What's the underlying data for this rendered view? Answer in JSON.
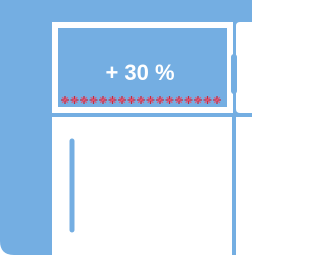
{
  "badge": {
    "label": "+ 30 %"
  }
}
